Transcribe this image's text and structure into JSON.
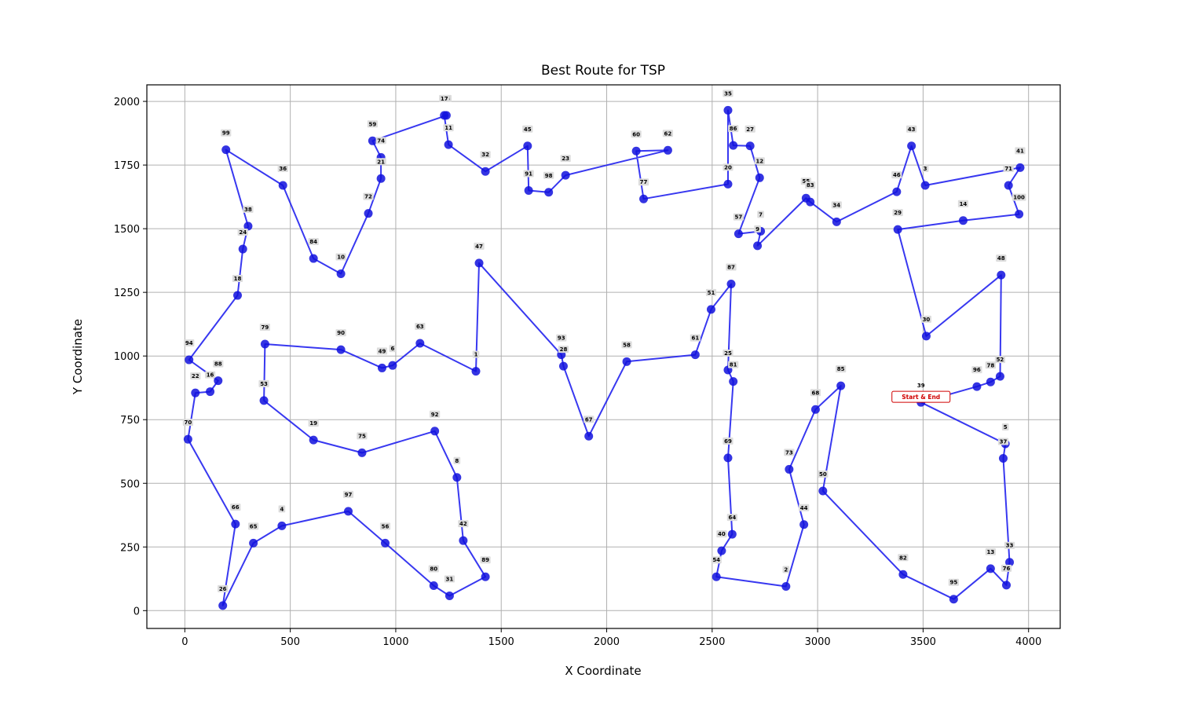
{
  "chart_data": {
    "type": "scatter",
    "title": "Best Route for TSP",
    "xlabel": "X Coordinate",
    "ylabel": "Y Coordinate",
    "xlim": [
      -180,
      4150
    ],
    "ylim": [
      -70,
      2065
    ],
    "xticks": [
      0,
      500,
      1000,
      1500,
      2000,
      2500,
      3000,
      3500,
      4000
    ],
    "yticks": [
      0,
      250,
      500,
      750,
      1000,
      1250,
      1500,
      1750,
      2000
    ],
    "grid": true,
    "colors": {
      "route": "#2222ee",
      "point": "#1010dd",
      "start_label": "#d00000"
    },
    "start_label": "Start & End",
    "start_city": "39",
    "points": [
      {
        "id": "1",
        "x": 1380,
        "y": 940
      },
      {
        "id": "2",
        "x": 2850,
        "y": 95
      },
      {
        "id": "3",
        "x": 3510,
        "y": 1670
      },
      {
        "id": "4",
        "x": 460,
        "y": 333
      },
      {
        "id": "5",
        "x": 3890,
        "y": 655
      },
      {
        "id": "6",
        "x": 985,
        "y": 963
      },
      {
        "id": "7",
        "x": 2730,
        "y": 1490
      },
      {
        "id": "8",
        "x": 1290,
        "y": 523
      },
      {
        "id": "9",
        "x": 2715,
        "y": 1433
      },
      {
        "id": "10",
        "x": 740,
        "y": 1323
      },
      {
        "id": "11",
        "x": 1250,
        "y": 1830
      },
      {
        "id": "12",
        "x": 2725,
        "y": 1700
      },
      {
        "id": "13",
        "x": 3820,
        "y": 165
      },
      {
        "id": "14",
        "x": 3690,
        "y": 1532
      },
      {
        "id": "15",
        "x": 1240,
        "y": 1945
      },
      {
        "id": "16",
        "x": 120,
        "y": 860
      },
      {
        "id": "17",
        "x": 1230,
        "y": 1945
      },
      {
        "id": "18",
        "x": 250,
        "y": 1238
      },
      {
        "id": "19",
        "x": 610,
        "y": 670
      },
      {
        "id": "20",
        "x": 2575,
        "y": 1675
      },
      {
        "id": "21",
        "x": 930,
        "y": 1697
      },
      {
        "id": "22",
        "x": 50,
        "y": 855
      },
      {
        "id": "23",
        "x": 1805,
        "y": 1710
      },
      {
        "id": "24",
        "x": 275,
        "y": 1420
      },
      {
        "id": "25",
        "x": 2575,
        "y": 945
      },
      {
        "id": "26",
        "x": 180,
        "y": 20
      },
      {
        "id": "27",
        "x": 2680,
        "y": 1825
      },
      {
        "id": "28",
        "x": 1795,
        "y": 960
      },
      {
        "id": "29",
        "x": 3380,
        "y": 1497
      },
      {
        "id": "30",
        "x": 3515,
        "y": 1078
      },
      {
        "id": "31",
        "x": 1255,
        "y": 58
      },
      {
        "id": "32",
        "x": 1425,
        "y": 1725
      },
      {
        "id": "33",
        "x": 3910,
        "y": 190
      },
      {
        "id": "34",
        "x": 3090,
        "y": 1527
      },
      {
        "id": "35",
        "x": 2575,
        "y": 1965
      },
      {
        "id": "36",
        "x": 465,
        "y": 1670
      },
      {
        "id": "37",
        "x": 3880,
        "y": 598
      },
      {
        "id": "38",
        "x": 300,
        "y": 1510
      },
      {
        "id": "39",
        "x": 3490,
        "y": 818
      },
      {
        "id": "40",
        "x": 2545,
        "y": 235
      },
      {
        "id": "41",
        "x": 3960,
        "y": 1740
      },
      {
        "id": "42",
        "x": 1320,
        "y": 275
      },
      {
        "id": "43",
        "x": 3445,
        "y": 1825
      },
      {
        "id": "44",
        "x": 2935,
        "y": 338
      },
      {
        "id": "45",
        "x": 1625,
        "y": 1825
      },
      {
        "id": "46",
        "x": 3375,
        "y": 1645
      },
      {
        "id": "47",
        "x": 1395,
        "y": 1365
      },
      {
        "id": "48",
        "x": 3870,
        "y": 1318
      },
      {
        "id": "49",
        "x": 935,
        "y": 953
      },
      {
        "id": "50",
        "x": 3025,
        "y": 470
      },
      {
        "id": "51",
        "x": 2495,
        "y": 1183
      },
      {
        "id": "52",
        "x": 3865,
        "y": 920
      },
      {
        "id": "53",
        "x": 375,
        "y": 825
      },
      {
        "id": "54",
        "x": 2520,
        "y": 133
      },
      {
        "id": "55",
        "x": 2945,
        "y": 1620
      },
      {
        "id": "56",
        "x": 950,
        "y": 265
      },
      {
        "id": "57",
        "x": 2625,
        "y": 1480
      },
      {
        "id": "58",
        "x": 2095,
        "y": 978
      },
      {
        "id": "59",
        "x": 890,
        "y": 1845
      },
      {
        "id": "60",
        "x": 2140,
        "y": 1805
      },
      {
        "id": "61",
        "x": 2420,
        "y": 1005
      },
      {
        "id": "62",
        "x": 2290,
        "y": 1808
      },
      {
        "id": "63",
        "x": 1115,
        "y": 1050
      },
      {
        "id": "64",
        "x": 2595,
        "y": 300
      },
      {
        "id": "65",
        "x": 325,
        "y": 265
      },
      {
        "id": "66",
        "x": 240,
        "y": 340
      },
      {
        "id": "67",
        "x": 1915,
        "y": 685
      },
      {
        "id": "68",
        "x": 2990,
        "y": 790
      },
      {
        "id": "69",
        "x": 2575,
        "y": 600
      },
      {
        "id": "70",
        "x": 15,
        "y": 673
      },
      {
        "id": "71",
        "x": 3905,
        "y": 1670
      },
      {
        "id": "72",
        "x": 870,
        "y": 1560
      },
      {
        "id": "73",
        "x": 2865,
        "y": 555
      },
      {
        "id": "74",
        "x": 930,
        "y": 1780
      },
      {
        "id": "75",
        "x": 840,
        "y": 620
      },
      {
        "id": "76",
        "x": 3895,
        "y": 100
      },
      {
        "id": "77",
        "x": 2175,
        "y": 1617
      },
      {
        "id": "78",
        "x": 3820,
        "y": 898
      },
      {
        "id": "79",
        "x": 380,
        "y": 1047
      },
      {
        "id": "80",
        "x": 1180,
        "y": 98
      },
      {
        "id": "81",
        "x": 2600,
        "y": 900
      },
      {
        "id": "82",
        "x": 3405,
        "y": 142
      },
      {
        "id": "83",
        "x": 2965,
        "y": 1605
      },
      {
        "id": "84",
        "x": 610,
        "y": 1383
      },
      {
        "id": "85",
        "x": 3110,
        "y": 883
      },
      {
        "id": "86",
        "x": 2600,
        "y": 1827
      },
      {
        "id": "87",
        "x": 2590,
        "y": 1283
      },
      {
        "id": "88",
        "x": 158,
        "y": 903
      },
      {
        "id": "89",
        "x": 1425,
        "y": 133
      },
      {
        "id": "90",
        "x": 740,
        "y": 1025
      },
      {
        "id": "91",
        "x": 1630,
        "y": 1650
      },
      {
        "id": "92",
        "x": 1185,
        "y": 705
      },
      {
        "id": "93",
        "x": 1785,
        "y": 1005
      },
      {
        "id": "94",
        "x": 20,
        "y": 985
      },
      {
        "id": "95",
        "x": 3645,
        "y": 45
      },
      {
        "id": "96",
        "x": 3755,
        "y": 880
      },
      {
        "id": "97",
        "x": 775,
        "y": 390
      },
      {
        "id": "98",
        "x": 1725,
        "y": 1643
      },
      {
        "id": "99",
        "x": 195,
        "y": 1810
      },
      {
        "id": "100",
        "x": 3955,
        "y": 1557
      }
    ],
    "route": [
      "39",
      "96",
      "78",
      "52",
      "48",
      "30",
      "29",
      "14",
      "100",
      "71",
      "41",
      "3",
      "43",
      "46",
      "34",
      "83",
      "55",
      "9",
      "7",
      "57",
      "12",
      "27",
      "86",
      "35",
      "20",
      "77",
      "60",
      "62",
      "23",
      "98",
      "91",
      "45",
      "32",
      "11",
      "17",
      "15",
      "59",
      "74",
      "21",
      "72",
      "10",
      "84",
      "36",
      "99",
      "38",
      "24",
      "18",
      "94",
      "88",
      "16",
      "22",
      "70",
      "66",
      "26",
      "65",
      "4",
      "97",
      "56",
      "80",
      "31",
      "89",
      "42",
      "8",
      "92",
      "75",
      "19",
      "53",
      "79",
      "90",
      "49",
      "6",
      "63",
      "1",
      "47",
      "93",
      "28",
      "67",
      "58",
      "61",
      "51",
      "87",
      "25",
      "81",
      "69",
      "64",
      "40",
      "54",
      "2",
      "44",
      "73",
      "68",
      "85",
      "50",
      "82",
      "95",
      "13",
      "76",
      "33",
      "37",
      "5",
      "39"
    ]
  }
}
